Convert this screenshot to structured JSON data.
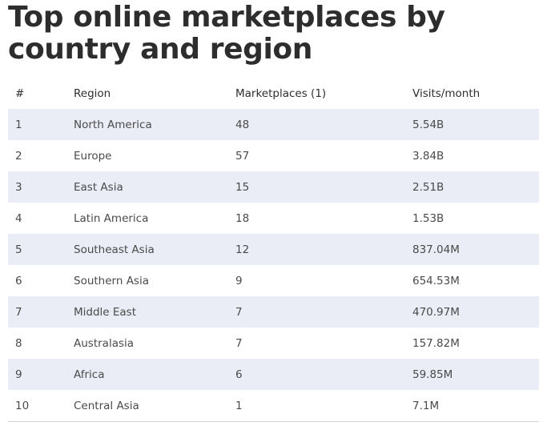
{
  "title": "Top online marketplaces by country and region",
  "columns": [
    "#",
    "Region",
    "Marketplaces (1)",
    "Visits/month"
  ],
  "rows": [
    [
      "1",
      "North America",
      "48",
      "5.54B"
    ],
    [
      "2",
      "Europe",
      "57",
      "3.84B"
    ],
    [
      "3",
      "East Asia",
      "15",
      "2.51B"
    ],
    [
      "4",
      "Latin America",
      "18",
      "1.53B"
    ],
    [
      "5",
      "Southeast Asia",
      "12",
      "837.04M"
    ],
    [
      "6",
      "Southern Asia",
      "9",
      "654.53M"
    ],
    [
      "7",
      "Middle East",
      "7",
      "470.97M"
    ],
    [
      "8",
      "Australasia",
      "7",
      "157.82M"
    ],
    [
      "9",
      "Africa",
      "6",
      "59.85M"
    ],
    [
      "10",
      "Central Asia",
      "1",
      "7.1M"
    ]
  ],
  "colors": {
    "stripe": "#eaedf5",
    "title": "#2d2d2d",
    "text": "#4a4a4a"
  }
}
